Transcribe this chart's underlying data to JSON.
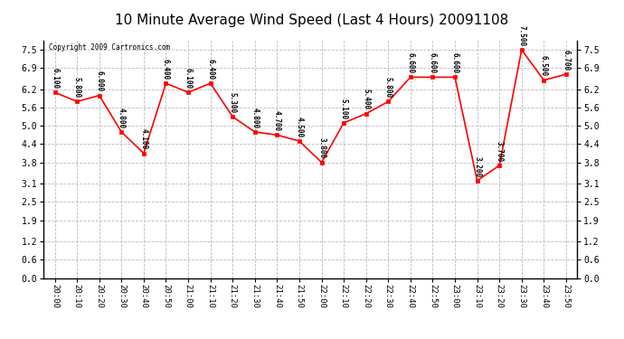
{
  "title": "10 Minute Average Wind Speed (Last 4 Hours) 20091108",
  "copyright": "Copyright 2009 Cartronics.com",
  "x_labels": [
    "20:00",
    "20:10",
    "20:20",
    "20:30",
    "20:40",
    "20:50",
    "21:00",
    "21:10",
    "21:20",
    "21:30",
    "21:40",
    "21:50",
    "22:00",
    "22:10",
    "22:20",
    "22:30",
    "22:40",
    "22:50",
    "23:00",
    "23:10",
    "23:20",
    "23:30",
    "23:40",
    "23:50"
  ],
  "y_vals": [
    6.1,
    5.8,
    6.0,
    4.8,
    4.1,
    6.4,
    6.1,
    6.4,
    5.3,
    4.8,
    4.7,
    4.5,
    3.8,
    5.1,
    5.4,
    5.8,
    6.6,
    6.6,
    6.6,
    3.2,
    3.7,
    7.5,
    6.5,
    6.7
  ],
  "point_labels": [
    "6.100",
    "5.800",
    "6.000",
    "4.800",
    "4.100",
    "6.400",
    "6.100",
    "6.400",
    "5.300",
    "4.800",
    "4.700",
    "4.500",
    "3.800",
    "5.100",
    "5.400",
    "5.800",
    "6.600",
    "6.600",
    "6.600",
    "3.200",
    "3.700",
    "7.500",
    "6.500",
    "6.700"
  ],
  "line_color": "#ff0000",
  "marker_color": "#ff0000",
  "bg_color": "#ffffff",
  "grid_color": "#bbbbbb",
  "ylim": [
    0.0,
    7.8
  ],
  "yticks": [
    0.0,
    0.6,
    1.2,
    1.9,
    2.5,
    3.1,
    3.8,
    4.4,
    5.0,
    5.6,
    6.2,
    6.9,
    7.5
  ],
  "title_fontsize": 11,
  "tick_fontsize": 7,
  "annot_fontsize": 5.5,
  "xlabel_fontsize": 6.5
}
